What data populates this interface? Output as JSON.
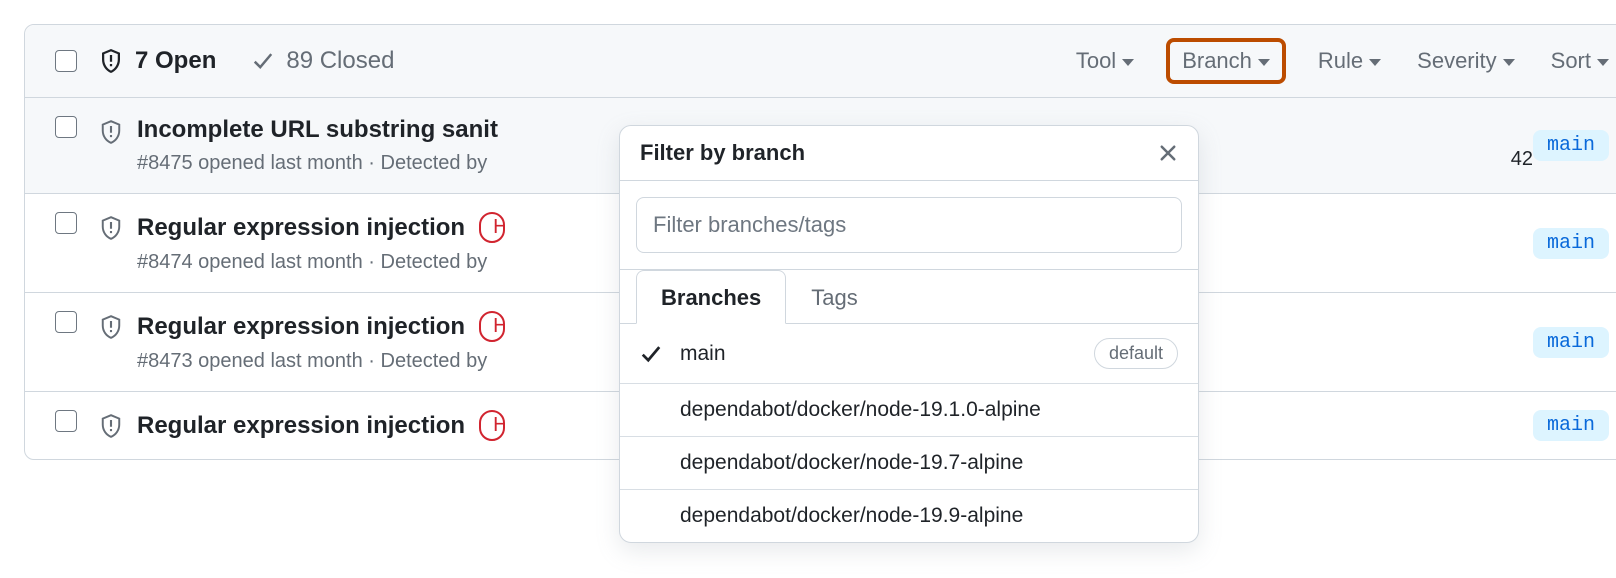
{
  "colors": {
    "border": "#d0d7de",
    "text_primary": "#1f2328",
    "text_muted": "#656d76",
    "highlight_border": "#bc4c00",
    "branch_badge_bg": "#ddf4ff",
    "branch_badge_fg": "#0969da",
    "severity_border": "#d1242f",
    "header_bg": "#f6f8fa"
  },
  "header": {
    "open_count": "7 Open",
    "closed_count": "89 Closed",
    "filters": {
      "tool": "Tool",
      "branch": "Branch",
      "rule": "Rule",
      "severity": "Severity",
      "sort": "Sort"
    }
  },
  "rows": [
    {
      "title": "Incomplete URL substring sanit",
      "meta": "#8475 opened last month · Detected by ",
      "branch": "main",
      "severity_fragment": "",
      "trailing": "42",
      "hover": true
    },
    {
      "title": "Regular expression injection",
      "meta": "#8474 opened last month · Detected by ",
      "branch": "main",
      "severity_fragment": "H",
      "trailing": "",
      "hover": false
    },
    {
      "title": "Regular expression injection",
      "meta": "#8473 opened last month · Detected by ",
      "branch": "main",
      "severity_fragment": "H",
      "trailing": "",
      "hover": false
    },
    {
      "title": "Regular expression injection",
      "meta": "",
      "branch": "main",
      "severity_fragment": "H",
      "trailing": "",
      "hover": false
    }
  ],
  "dropdown": {
    "title": "Filter by branch",
    "placeholder": "Filter branches/tags",
    "tabs": {
      "branches": "Branches",
      "tags": "Tags"
    },
    "default_label": "default",
    "branches": [
      {
        "name": "main",
        "selected": true,
        "default": true
      },
      {
        "name": "dependabot/docker/node-19.1.0-alpine",
        "selected": false,
        "default": false
      },
      {
        "name": "dependabot/docker/node-19.7-alpine",
        "selected": false,
        "default": false
      },
      {
        "name": "dependabot/docker/node-19.9-alpine",
        "selected": false,
        "default": false
      }
    ]
  }
}
